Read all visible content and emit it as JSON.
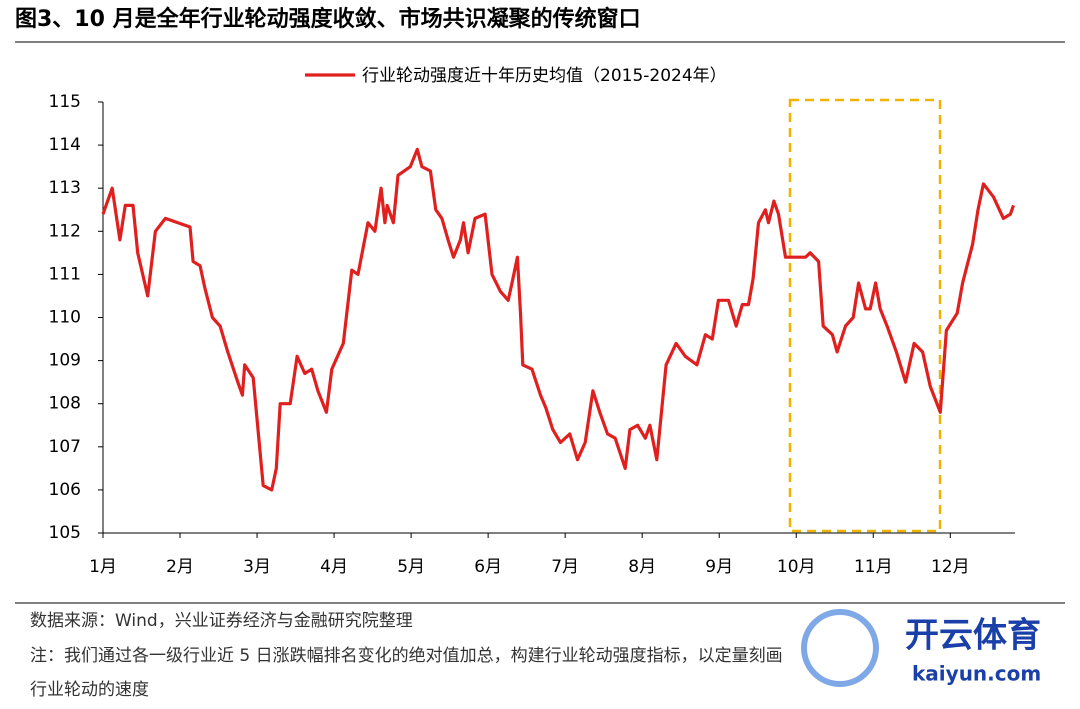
{
  "chart_data": {
    "type": "line",
    "title": "图3、10 月是全年行业轮动强度收敛、市场共识凝聚的传统窗口",
    "x": [
      1.0,
      1.12,
      1.22,
      1.29,
      1.39,
      1.45,
      1.58,
      1.68,
      1.81,
      2.13,
      2.17,
      2.26,
      2.32,
      2.42,
      2.52,
      2.62,
      2.75,
      2.81,
      2.84,
      2.95,
      3.08,
      3.19,
      3.25,
      3.3,
      3.43,
      3.52,
      3.62,
      3.71,
      3.79,
      3.9,
      3.97,
      4.12,
      4.23,
      4.31,
      4.44,
      4.53,
      4.61,
      4.66,
      4.69,
      4.77,
      4.83,
      4.99,
      5.08,
      5.14,
      5.25,
      5.32,
      5.4,
      5.48,
      5.55,
      5.64,
      5.68,
      5.74,
      5.83,
      5.96,
      6.05,
      6.16,
      6.26,
      6.31,
      6.38,
      6.42,
      6.45,
      6.57,
      6.68,
      6.75,
      6.84,
      6.94,
      7.06,
      7.16,
      7.26,
      7.36,
      7.45,
      7.55,
      7.65,
      7.78,
      7.84,
      7.94,
      8.04,
      8.1,
      8.19,
      8.31,
      8.44,
      8.56,
      8.71,
      8.82,
      8.91,
      8.99,
      9.12,
      9.22,
      9.3,
      9.38,
      9.44,
      9.51,
      9.6,
      9.64,
      9.71,
      9.77,
      9.86,
      10.12,
      10.18,
      10.29,
      10.35,
      10.47,
      10.53,
      10.64,
      10.74,
      10.81,
      10.9,
      10.96,
      11.03,
      11.09,
      11.18,
      11.3,
      11.42,
      11.53,
      11.64,
      11.74,
      11.87,
      11.95,
      12.09,
      12.16,
      12.29,
      12.36,
      12.43,
      12.56,
      12.69,
      12.78,
      12.82
    ],
    "series": [
      {
        "name": "行业轮动强度近十年历史均值（2015-2024年）",
        "color": "#e0201f",
        "values": [
          112.4,
          113.0,
          111.8,
          112.6,
          112.6,
          111.5,
          110.5,
          112.0,
          112.3,
          112.1,
          111.3,
          111.2,
          110.7,
          110.0,
          109.8,
          109.2,
          108.5,
          108.2,
          108.9,
          108.6,
          106.1,
          106.0,
          106.5,
          108.0,
          108.0,
          109.1,
          108.7,
          108.8,
          108.3,
          107.8,
          108.8,
          109.4,
          111.1,
          111.0,
          112.2,
          112.0,
          113.0,
          112.2,
          112.6,
          112.2,
          113.3,
          113.5,
          113.9,
          113.5,
          113.4,
          112.5,
          112.3,
          111.8,
          111.4,
          111.8,
          112.2,
          111.5,
          112.3,
          112.4,
          111.0,
          110.6,
          110.4,
          110.8,
          111.4,
          110.1,
          108.9,
          108.8,
          108.2,
          107.9,
          107.4,
          107.1,
          107.3,
          106.7,
          107.1,
          108.3,
          107.8,
          107.3,
          107.2,
          106.5,
          107.4,
          107.5,
          107.2,
          107.5,
          106.7,
          108.9,
          109.4,
          109.1,
          108.9,
          109.6,
          109.5,
          110.4,
          110.4,
          109.8,
          110.3,
          110.3,
          110.9,
          112.2,
          112.5,
          112.2,
          112.7,
          112.4,
          111.4,
          111.4,
          111.5,
          111.3,
          109.8,
          109.6,
          109.2,
          109.8,
          110.0,
          110.8,
          110.2,
          110.2,
          110.8,
          110.2,
          109.8,
          109.2,
          108.5,
          109.4,
          109.2,
          108.4,
          107.8,
          109.7,
          110.1,
          110.8,
          111.7,
          112.5,
          113.1,
          112.8,
          112.3,
          112.4,
          112.6
        ]
      }
    ],
    "xlim": [
      1,
      12.84
    ],
    "xticks": [
      {
        "value": 1,
        "label": "1月"
      },
      {
        "value": 2,
        "label": "2月"
      },
      {
        "value": 3,
        "label": "3月"
      },
      {
        "value": 4,
        "label": "4月"
      },
      {
        "value": 5,
        "label": "5月"
      },
      {
        "value": 6,
        "label": "6月"
      },
      {
        "value": 7,
        "label": "7月"
      },
      {
        "value": 8,
        "label": "8月"
      },
      {
        "value": 9,
        "label": "9月"
      },
      {
        "value": 10,
        "label": "10月"
      },
      {
        "value": 11,
        "label": "11月"
      },
      {
        "value": 12,
        "label": "12月"
      }
    ],
    "ylim": [
      105,
      115
    ],
    "yticks": [
      105,
      106,
      107,
      108,
      109,
      110,
      111,
      112,
      113,
      114,
      115
    ],
    "grid": false,
    "source": "数据来源：Wind，兴业证券经济与金融研究院整理",
    "notes": [
      "注：我们通过各一级行业近 5 日涨跌幅排名变化的绝对值加总，构建行业轮动强度指标，以定量刻画",
      "行业轮动的速度"
    ],
    "watermark": [
      "开云体育",
      "kaiyun.com"
    ]
  }
}
